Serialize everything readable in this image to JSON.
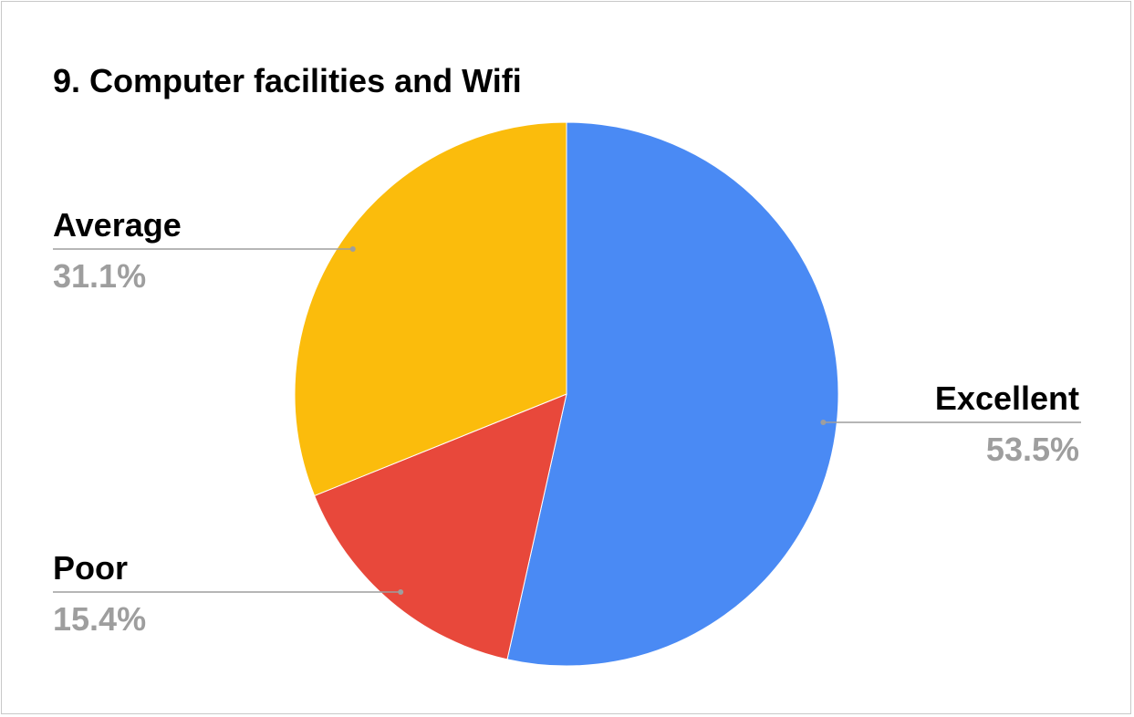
{
  "chart_data": {
    "type": "pie",
    "title": "9. Computer facilities and Wifi",
    "slices": [
      {
        "label": "Excellent",
        "value": 53.5,
        "display": "53.5%",
        "color": "#4a8af4"
      },
      {
        "label": "Poor",
        "value": 15.4,
        "display": "15.4%",
        "color": "#e8483b"
      },
      {
        "label": "Average",
        "value": 31.1,
        "display": "31.1%",
        "color": "#fbbc0c"
      }
    ],
    "start_angle": "12 o'clock",
    "direction": "clockwise",
    "legend": "none",
    "label_style": "leader lines"
  }
}
